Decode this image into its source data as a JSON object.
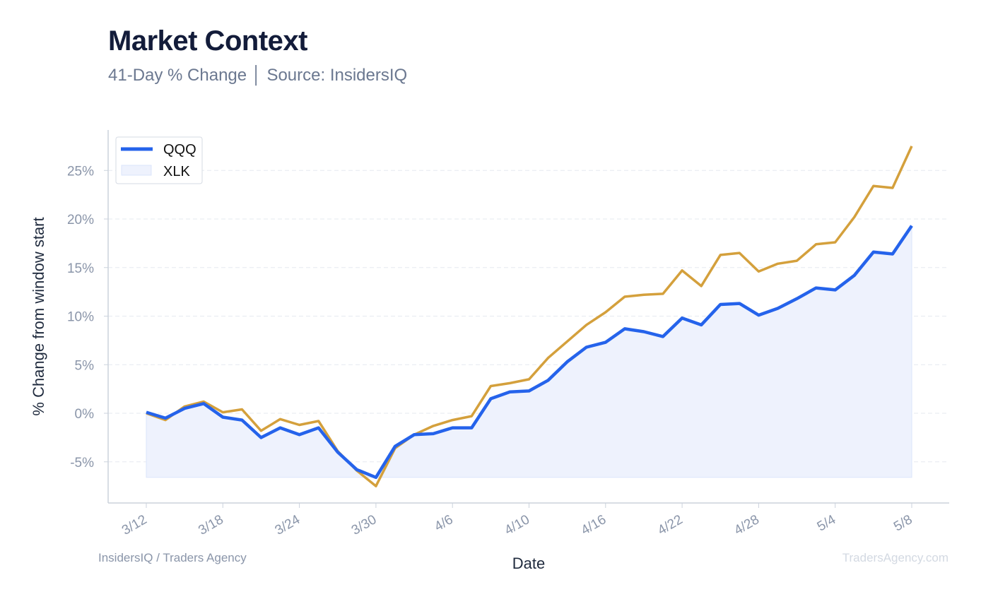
{
  "header": {
    "title": "Market Context",
    "subtitle": "41-Day % Change │ Source: InsidersIQ"
  },
  "footer": {
    "left": "InsidersIQ / Traders Agency",
    "right": "TradersAgency.com"
  },
  "colors": {
    "qqq": "#2563eb",
    "xlk": "#d4a03c",
    "fill": "#eef2fd",
    "grid": "#e6e9ef",
    "axis": "#cbd2dc"
  },
  "chart_data": {
    "type": "line",
    "xlabel": "Date",
    "ylabel": "% Change from window start",
    "ylim": [
      -9,
      29
    ],
    "yticks": [
      -5,
      0,
      5,
      10,
      15,
      20,
      25
    ],
    "ytick_labels": [
      "-5%",
      "0%",
      "5%",
      "10%",
      "15%",
      "20%",
      "25%"
    ],
    "xtick_labels": [
      "3/12",
      "3/18",
      "3/24",
      "3/30",
      "4/6",
      "4/10",
      "4/16",
      "4/22",
      "4/28",
      "5/4",
      "5/8"
    ],
    "xtick_index": [
      0,
      4,
      8,
      12,
      16,
      20,
      24,
      28,
      32,
      36,
      40
    ],
    "grid": true,
    "legend": "top-left",
    "series": [
      {
        "name": "QQQ",
        "style": "line-with-area",
        "values": [
          0.1,
          -0.5,
          0.5,
          1.0,
          -0.4,
          -0.7,
          -2.5,
          -1.5,
          -2.2,
          -1.5,
          -4.0,
          -5.8,
          -6.6,
          -3.4,
          -2.2,
          -2.1,
          -1.5,
          -1.5,
          1.5,
          2.2,
          2.3,
          3.4,
          5.3,
          6.8,
          7.3,
          8.7,
          8.4,
          7.9,
          9.8,
          9.1,
          11.2,
          11.3,
          10.1,
          10.8,
          11.8,
          12.9,
          12.7,
          14.2,
          16.6,
          16.4,
          19.3
        ]
      },
      {
        "name": "XLK",
        "style": "line",
        "values": [
          0.0,
          -0.7,
          0.7,
          1.2,
          0.1,
          0.4,
          -1.8,
          -0.6,
          -1.2,
          -0.8,
          -3.9,
          -5.9,
          -7.5,
          -3.6,
          -2.2,
          -1.3,
          -0.7,
          -0.3,
          2.8,
          3.1,
          3.5,
          5.7,
          7.4,
          9.1,
          10.4,
          12.0,
          12.2,
          12.3,
          14.7,
          13.1,
          16.3,
          16.5,
          14.6,
          15.4,
          15.7,
          17.4,
          17.6,
          20.2,
          23.4,
          23.2,
          27.5
        ]
      }
    ]
  }
}
